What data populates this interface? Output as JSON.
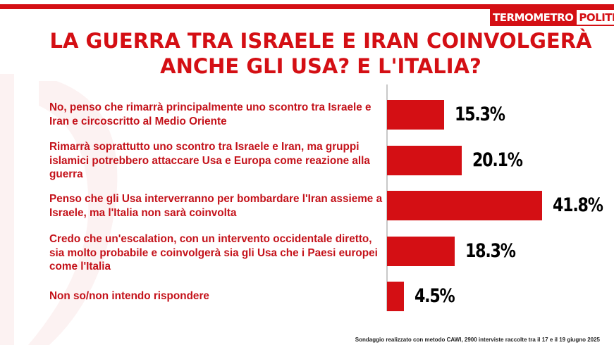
{
  "logo": {
    "left": "TERMOMETRO",
    "right": "POLITICO"
  },
  "title_line1": "LA GUERRA TRA ISRAELE E IRAN COINVOLGERÀ",
  "title_line2": "ANCHE GLI USA? E L'ITALIA?",
  "footnote": "Sondaggio realizzato con metodo CAWI, 2900 interviste raccolte tra il 17 e il 19 giugno 2025",
  "colors": {
    "accent": "#d40f14",
    "label_text": "#c4121a",
    "value_text": "#000000"
  },
  "chart_data": {
    "type": "bar",
    "orientation": "horizontal",
    "title": "LA GUERRA TRA ISRAELE E IRAN COINVOLGERÀ ANCHE GLI USA? E L'ITALIA?",
    "categories": [
      "No, penso che rimarrà  principalmente uno scontro tra Israele e Iran e circoscritto al Medio Oriente",
      "Rimarrà soprattutto uno scontro tra Israele e Iran, ma gruppi islamici potrebbero attaccare Usa e Europa come reazione alla guerra",
      "Penso che gli Usa interverranno per bombardare l'Iran assieme a Israele, ma l'Italia non sarà coinvolta",
      "Credo che un'escalation, con un intervento occidentale diretto, sia molto probabile e coinvolgerà sia gli Usa che i Paesi europei come l'Italia",
      "Non so/non intendo rispondere"
    ],
    "values": [
      15.3,
      20.1,
      41.8,
      18.3,
      4.5
    ],
    "value_labels": [
      "15.3%",
      "20.1%",
      "41.8%",
      "18.3%",
      "4.5%"
    ],
    "unit": "%",
    "xlim": [
      0,
      45
    ],
    "grid": false,
    "legend": "none"
  }
}
